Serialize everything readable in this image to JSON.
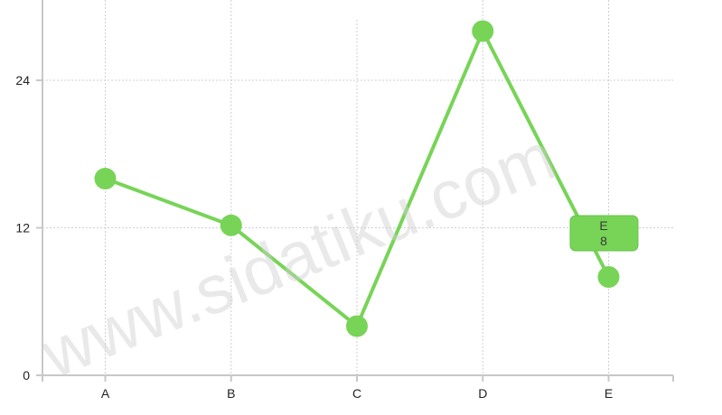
{
  "chart_data": {
    "type": "line",
    "title": "",
    "xlabel": "",
    "ylabel": "",
    "categories": [
      "A",
      "B",
      "C",
      "D",
      "E"
    ],
    "series": [
      {
        "values": [
          16,
          12.2,
          4,
          28,
          8
        ],
        "color": "#77d457"
      }
    ],
    "ylim": [
      0,
      28
    ],
    "yticks": [
      0,
      12,
      24
    ],
    "grid": true,
    "tooltip": {
      "category": "E",
      "value": "8"
    }
  },
  "watermark": "www.sidatiku.com"
}
